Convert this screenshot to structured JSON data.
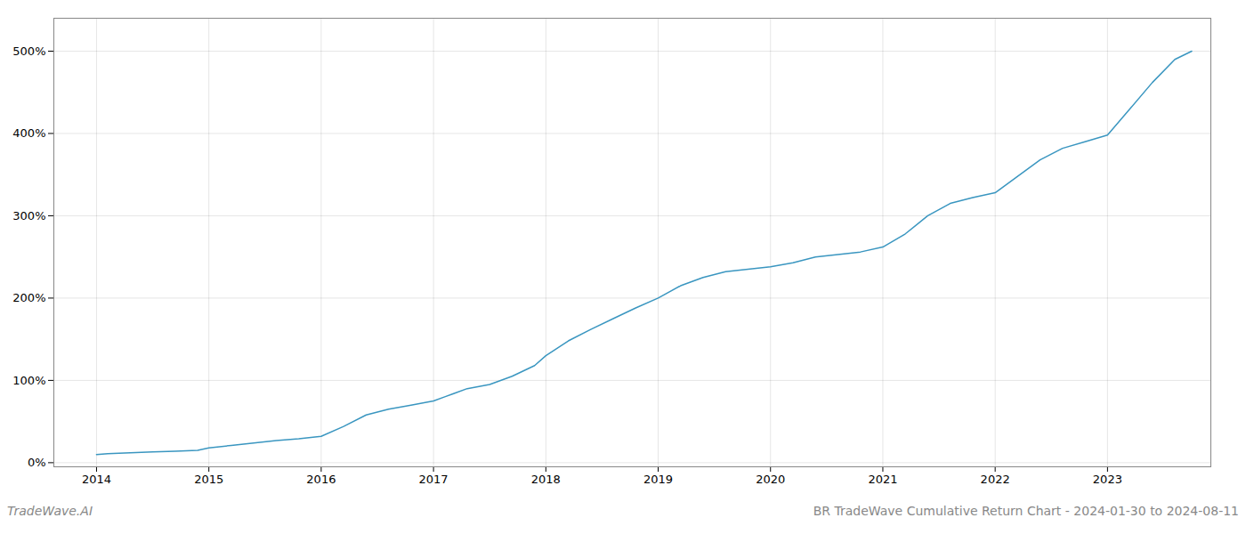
{
  "chart_data": {
    "type": "line",
    "title": "BR TradeWave Cumulative Return Chart - 2024-01-30 to 2024-08-11",
    "annotations": [
      "TradeWave.AI"
    ],
    "x": [
      2014.0,
      2014.1,
      2014.3,
      2014.5,
      2014.7,
      2014.9,
      2015.0,
      2015.2,
      2015.4,
      2015.6,
      2015.8,
      2016.0,
      2016.2,
      2016.4,
      2016.6,
      2016.8,
      2017.0,
      2017.1,
      2017.3,
      2017.5,
      2017.7,
      2017.9,
      2018.0,
      2018.2,
      2018.4,
      2018.6,
      2018.8,
      2019.0,
      2019.2,
      2019.4,
      2019.6,
      2019.8,
      2020.0,
      2020.2,
      2020.4,
      2020.6,
      2020.8,
      2021.0,
      2021.2,
      2021.4,
      2021.6,
      2021.8,
      2022.0,
      2022.2,
      2022.4,
      2022.6,
      2022.8,
      2023.0,
      2023.2,
      2023.4,
      2023.6,
      2023.75
    ],
    "values": [
      10,
      11,
      12,
      13,
      14,
      15,
      18,
      21,
      24,
      27,
      29,
      32,
      44,
      58,
      65,
      70,
      75,
      80,
      90,
      95,
      105,
      118,
      130,
      148,
      162,
      175,
      188,
      200,
      215,
      225,
      232,
      235,
      238,
      243,
      250,
      253,
      256,
      262,
      278,
      300,
      315,
      322,
      328,
      348,
      368,
      382,
      390,
      398,
      430,
      462,
      490,
      500
    ],
    "color": "#3a96c0",
    "xlim": [
      2013.62,
      2023.92
    ],
    "xticks": [
      2014,
      2015,
      2016,
      2017,
      2018,
      2019,
      2020,
      2021,
      2022,
      2023
    ],
    "ylim": [
      -5,
      540
    ],
    "yticks": [
      {
        "value": 0,
        "label": "0%"
      },
      {
        "value": 100,
        "label": "100%"
      },
      {
        "value": 200,
        "label": "200%"
      },
      {
        "value": 300,
        "label": "300%"
      },
      {
        "value": 400,
        "label": "400%"
      },
      {
        "value": 500,
        "label": "500%"
      }
    ],
    "grid": true
  }
}
